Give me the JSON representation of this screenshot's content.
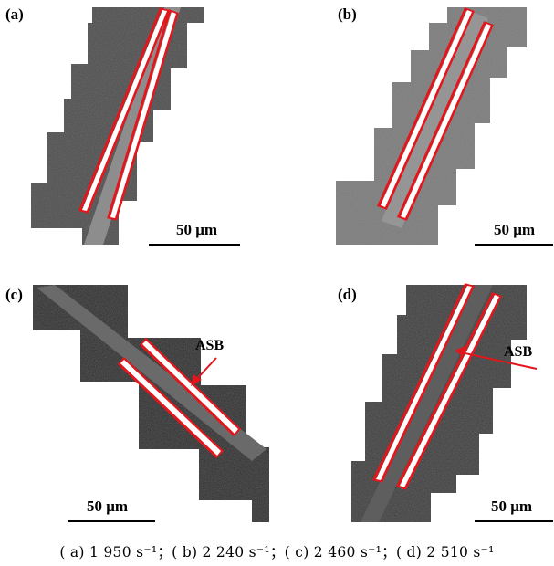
{
  "panels": [
    {
      "label": "(a)",
      "scale_bar": "50 μm"
    },
    {
      "label": "(b)",
      "scale_bar": "50 μm"
    },
    {
      "label": "(c)",
      "scale_bar": "50 μm",
      "annotation": "ASB"
    },
    {
      "label": "(d)",
      "scale_bar": "50 μm",
      "annotation": "ASB"
    }
  ],
  "caption": "( a)  1 950 s⁻¹；( b)  2 240 s⁻¹；( c)  2 460 s⁻¹；( d)  2 510 s⁻¹",
  "colors": {
    "band_outline": "#e3161c",
    "arrow": "#e3161c",
    "micrograph_a": "#4a4a4a",
    "micrograph_b": "#7a7a7a",
    "micrograph_c": "#2a2a2a",
    "micrograph_d": "#3a3a3a"
  }
}
